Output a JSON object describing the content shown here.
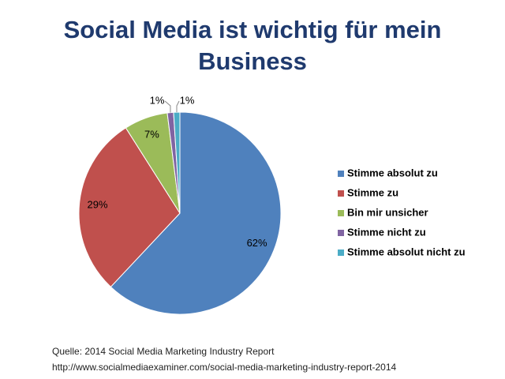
{
  "chart_data": {
    "type": "pie",
    "title": "Social Media ist wichtig für mein Business",
    "categories": [
      "Stimme absolut zu",
      "Stimme zu",
      "Bin mir unsicher",
      "Stimme nicht zu",
      "Stimme absolut nicht zu"
    ],
    "values": [
      62,
      29,
      7,
      1,
      1
    ],
    "value_labels": [
      "62%",
      "29%",
      "7%",
      "1%",
      "1%"
    ],
    "colors": [
      "#4f81bd",
      "#c0504d",
      "#9bbb59",
      "#8064a2",
      "#4bacc6"
    ],
    "legend": "right",
    "source": [
      "Quelle: 2014 Social Media Marketing Industry Report",
      "http://www.socialmediaexaminer.com/social-media-marketing-industry-report-2014"
    ]
  }
}
